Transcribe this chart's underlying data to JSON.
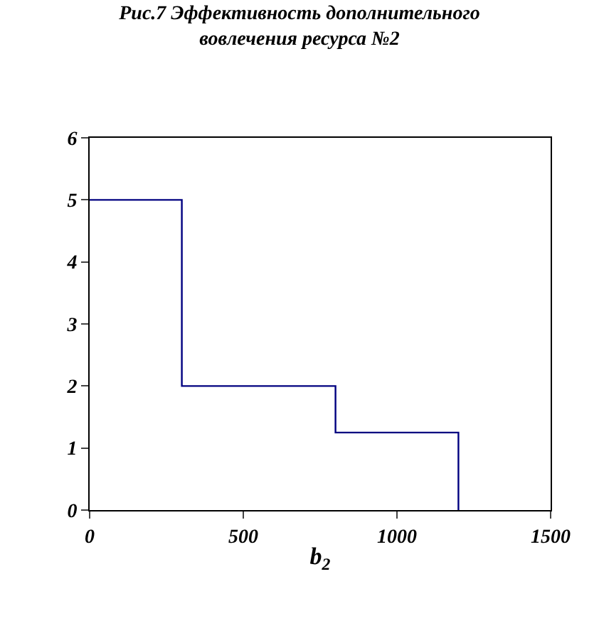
{
  "chart_data": {
    "type": "step",
    "title": "Рис.7 Эффективность дополнительного\nвовлечения ресурса №2",
    "xlabel": "b$_{2}$",
    "x": [
      0,
      300,
      800,
      1200
    ],
    "series": [
      {
        "color": "#000080",
        "values": [
          5,
          2,
          1.25,
          0
        ]
      }
    ],
    "xlim": [
      0,
      1500
    ],
    "xticks": [
      0,
      500,
      1000,
      1500
    ],
    "ylim": [
      0,
      6
    ],
    "yticks": [
      0,
      1,
      2,
      3,
      4,
      5,
      6
    ],
    "grid": false,
    "legend": false,
    "marker": "none",
    "line_style": "solid"
  }
}
